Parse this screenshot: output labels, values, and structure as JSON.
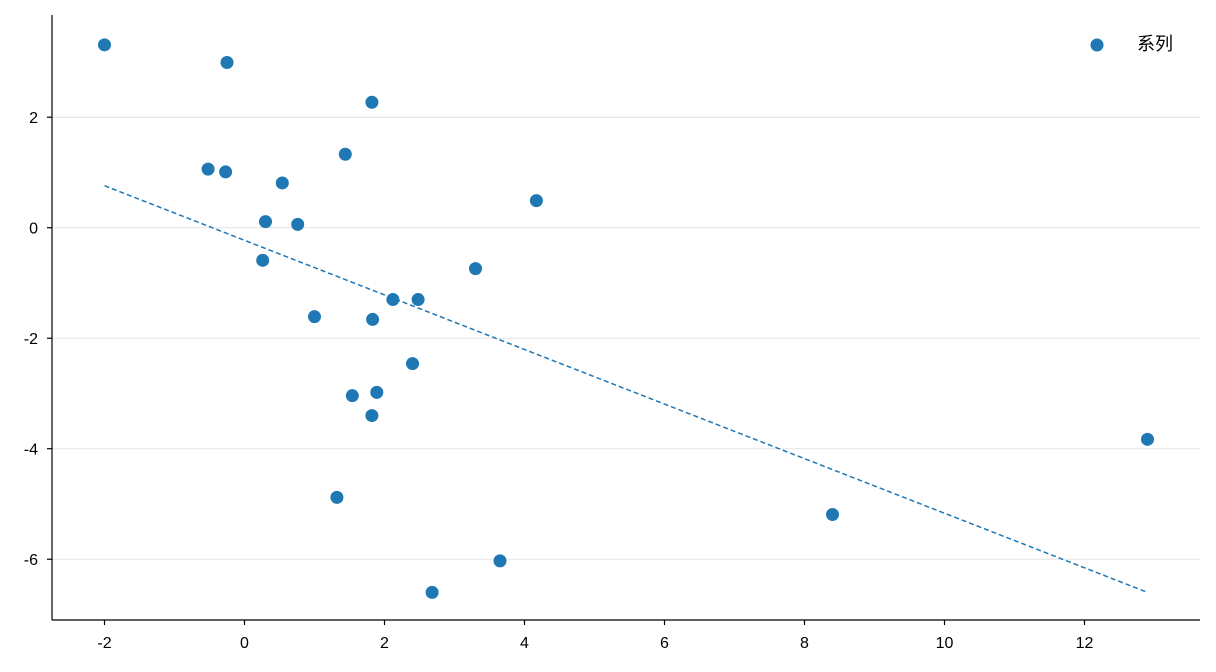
{
  "chart_data": {
    "type": "scatter",
    "title": "",
    "xlabel": "",
    "ylabel": "",
    "xlim": [
      -2.75,
      13.65
    ],
    "ylim": [
      -7.1,
      3.85
    ],
    "x_ticks": [
      -2,
      0,
      2,
      4,
      6,
      8,
      10,
      12
    ],
    "y_ticks": [
      -6,
      -4,
      -2,
      0,
      2
    ],
    "grid": "horizontal",
    "legend_position": "top-right",
    "series": [
      {
        "name": "系列",
        "color": "#1f77b4",
        "points": [
          {
            "x": -2.0,
            "y": 3.31
          },
          {
            "x": -0.25,
            "y": 2.99
          },
          {
            "x": 1.82,
            "y": 2.27
          },
          {
            "x": 1.44,
            "y": 1.33
          },
          {
            "x": -0.52,
            "y": 1.06
          },
          {
            "x": -0.27,
            "y": 1.01
          },
          {
            "x": 0.54,
            "y": 0.81
          },
          {
            "x": 4.17,
            "y": 0.49
          },
          {
            "x": 0.3,
            "y": 0.11
          },
          {
            "x": 0.76,
            "y": 0.06
          },
          {
            "x": 0.26,
            "y": -0.59
          },
          {
            "x": 3.3,
            "y": -0.74
          },
          {
            "x": 2.12,
            "y": -1.3
          },
          {
            "x": 2.48,
            "y": -1.3
          },
          {
            "x": 1.0,
            "y": -1.61
          },
          {
            "x": 1.83,
            "y": -1.66
          },
          {
            "x": 2.4,
            "y": -2.46
          },
          {
            "x": 1.89,
            "y": -2.98
          },
          {
            "x": 1.54,
            "y": -3.04
          },
          {
            "x": 1.82,
            "y": -3.4
          },
          {
            "x": 12.9,
            "y": -3.83
          },
          {
            "x": 1.32,
            "y": -4.88
          },
          {
            "x": 8.4,
            "y": -5.19
          },
          {
            "x": 3.65,
            "y": -6.03
          },
          {
            "x": 2.68,
            "y": -6.6
          }
        ]
      }
    ],
    "trendline": {
      "style": "dashed",
      "color": "#1f77b4",
      "x": [
        -2.0,
        12.9
      ],
      "y": [
        0.76,
        -6.6
      ]
    }
  }
}
